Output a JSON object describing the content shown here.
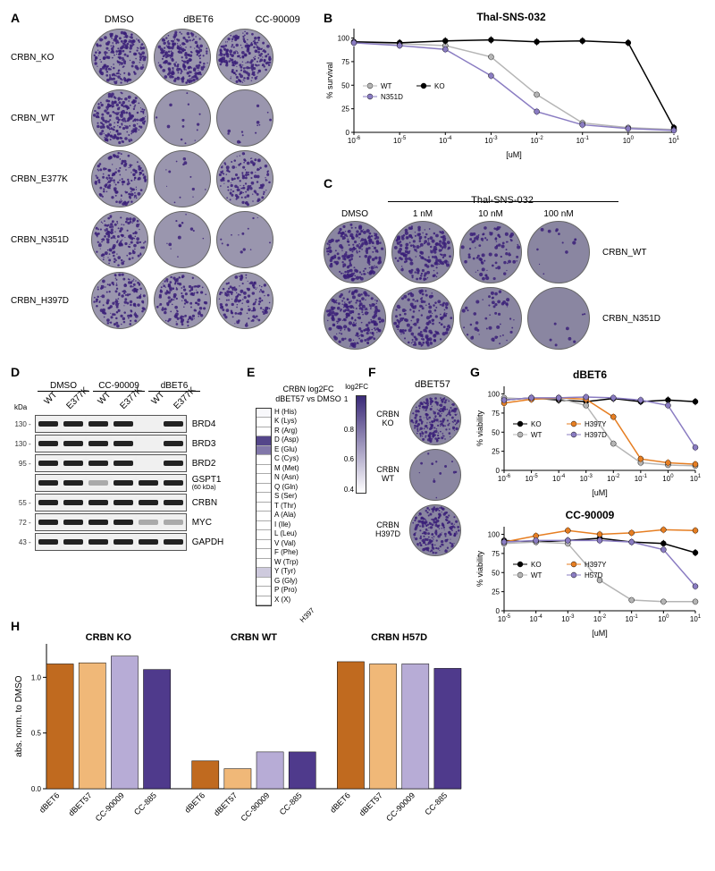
{
  "panelA": {
    "label": "A",
    "column_headers": [
      "DMSO",
      "dBET6",
      "CC-90009"
    ],
    "rows": [
      {
        "label": "CRBN_KO",
        "density": [
          0.85,
          0.85,
          0.85
        ]
      },
      {
        "label": "CRBN_WT",
        "density": [
          0.8,
          0.05,
          0.05
        ]
      },
      {
        "label": "CRBN_E377K",
        "density": [
          0.6,
          0.05,
          0.55
        ]
      },
      {
        "label": "CRBN_N351D",
        "density": [
          0.6,
          0.05,
          0.05
        ]
      },
      {
        "label": "CRBN_H397D",
        "density": [
          0.6,
          0.55,
          0.55
        ]
      }
    ],
    "dot_color": "#3a1f78",
    "plate_bg": "#9a96ae"
  },
  "panelB": {
    "label": "B",
    "title": "Thal-SNS-032",
    "ylabel": "% survival",
    "xlabel": "[uM]",
    "xticks_exp": [
      -6,
      -5,
      -4,
      -3,
      -2,
      -1,
      0,
      1
    ],
    "yticks": [
      0,
      25,
      50,
      75,
      100
    ],
    "ylim": [
      0,
      110
    ],
    "series": [
      {
        "name": "WT",
        "color": "#b5b5b5",
        "marker": "circle",
        "x_exp": [
          -6,
          -5,
          -4,
          -3,
          -2,
          -1,
          0,
          1
        ],
        "y": [
          95,
          94,
          92,
          80,
          40,
          10,
          5,
          3
        ]
      },
      {
        "name": "KO",
        "color": "#000000",
        "marker": "circle",
        "x_exp": [
          -6,
          -5,
          -4,
          -3,
          -2,
          -1,
          0,
          1
        ],
        "y": [
          96,
          95,
          97,
          98,
          96,
          97,
          95,
          5
        ]
      },
      {
        "name": "N351D",
        "color": "#8a7cc2",
        "marker": "circle",
        "x_exp": [
          -6,
          -5,
          -4,
          -3,
          -2,
          -1,
          0,
          1
        ],
        "y": [
          95,
          92,
          88,
          60,
          22,
          8,
          4,
          2
        ]
      }
    ],
    "legend": [
      {
        "name": "WT",
        "color": "#b5b5b5"
      },
      {
        "name": "KO",
        "color": "#000000"
      },
      {
        "name": "N351D",
        "color": "#8a7cc2"
      }
    ]
  },
  "panelC": {
    "label": "C",
    "group_title": "Thal-SNS-032",
    "column_headers": [
      "DMSO",
      "1 nM",
      "10 nM",
      "100 nM"
    ],
    "rows": [
      {
        "label": "CRBN_WT",
        "density": [
          0.85,
          0.75,
          0.35,
          0.05
        ]
      },
      {
        "label": "CRBN_N351D",
        "density": [
          0.85,
          0.7,
          0.2,
          0.03
        ]
      }
    ]
  },
  "panelD": {
    "label": "D",
    "groups": [
      "DMSO",
      "CC-90009",
      "dBET6"
    ],
    "lanes": [
      "WT",
      "E377K",
      "WT",
      "E377K",
      "WT",
      "E377K"
    ],
    "rows": [
      {
        "kda": "130",
        "target": "BRD4",
        "band": [
          "s",
          "s",
          "s",
          "s",
          "n",
          "s"
        ]
      },
      {
        "kda": "130",
        "target": "BRD3",
        "band": [
          "s",
          "s",
          "s",
          "s",
          "n",
          "s"
        ]
      },
      {
        "kda": "95",
        "target": "BRD2",
        "band": [
          "s",
          "s",
          "s",
          "s",
          "n",
          "s"
        ]
      },
      {
        "kda": "",
        "target": "GSPT1",
        "sub": "(60 kDa)",
        "band": [
          "s",
          "s",
          "f",
          "s",
          "s",
          "s"
        ]
      },
      {
        "kda": "55",
        "target": "CRBN",
        "band": [
          "s",
          "s",
          "s",
          "s",
          "s",
          "s"
        ]
      },
      {
        "kda": "72",
        "target": "MYC",
        "band": [
          "s",
          "s",
          "s",
          "s",
          "f",
          "f"
        ]
      },
      {
        "kda": "43",
        "target": "GAPDH",
        "band": [
          "s",
          "s",
          "s",
          "s",
          "s",
          "s"
        ]
      }
    ],
    "kda_unit": "kDa"
  },
  "panelE": {
    "label": "E",
    "title": "CRBN log2FC\ndBET57 vs DMSO",
    "x_label": "H397",
    "legend_title": "log2FC",
    "legend_ticks": [
      "1",
      "0.8",
      "0.6",
      "0.4"
    ],
    "rows": [
      {
        "aa": "H (His)",
        "v": 0.42
      },
      {
        "aa": "K (Lys)",
        "v": 0.4
      },
      {
        "aa": "R (Arg)",
        "v": 0.38
      },
      {
        "aa": "D (Asp)",
        "v": 0.92
      },
      {
        "aa": "E (Glu)",
        "v": 0.78
      },
      {
        "aa": "C (Cys)",
        "v": 0.4
      },
      {
        "aa": "M (Met)",
        "v": 0.4
      },
      {
        "aa": "N (Asn)",
        "v": 0.4
      },
      {
        "aa": "Q (Gln)",
        "v": 0.4
      },
      {
        "aa": "S (Ser)",
        "v": 0.4
      },
      {
        "aa": "T (Thr)",
        "v": 0.4
      },
      {
        "aa": "A (Ala)",
        "v": 0.4
      },
      {
        "aa": "I (Ile)",
        "v": 0.4
      },
      {
        "aa": "L (Leu)",
        "v": 0.4
      },
      {
        "aa": "V (Val)",
        "v": 0.4
      },
      {
        "aa": "F (Phe)",
        "v": 0.4
      },
      {
        "aa": "W (Trp)",
        "v": 0.4
      },
      {
        "aa": "Y (Tyr)",
        "v": 0.55
      },
      {
        "aa": "G (Gly)",
        "v": 0.4
      },
      {
        "aa": "P (Pro)",
        "v": 0.4
      },
      {
        "aa": "X (X)",
        "v": 0.4
      }
    ],
    "color_low": "#ffffff",
    "color_high": "#3a2a78"
  },
  "panelF": {
    "label": "F",
    "title": "dBET57",
    "rows": [
      {
        "label": "CRBN\nKO",
        "density": 0.85
      },
      {
        "label": "CRBN\nWT",
        "density": 0.05
      },
      {
        "label": "CRBN\nH397D",
        "density": 0.8
      }
    ]
  },
  "panelG": {
    "label": "G",
    "charts": [
      {
        "title": "dBET6",
        "ylabel": "% viability",
        "xlabel": "[uM]",
        "xticks_exp": [
          -6,
          -5,
          -4,
          -3,
          -2,
          -1,
          0,
          1
        ],
        "yticks": [
          0,
          25,
          50,
          75,
          100
        ],
        "series": [
          {
            "name": "KO",
            "color": "#000000",
            "x_exp": [
              -6,
              -5,
              -4,
              -3,
              -2,
              -1,
              0,
              1
            ],
            "y": [
              92,
              95,
              92,
              90,
              94,
              90,
              92,
              90
            ]
          },
          {
            "name": "WT",
            "color": "#b5b5b5",
            "x_exp": [
              -6,
              -5,
              -4,
              -3,
              -2,
              -1,
              0,
              1
            ],
            "y": [
              95,
              93,
              94,
              85,
              35,
              10,
              7,
              6
            ]
          },
          {
            "name": "H397Y",
            "color": "#e67e22",
            "x_exp": [
              -6,
              -5,
              -4,
              -3,
              -2,
              -1,
              0,
              1
            ],
            "y": [
              88,
              93,
              95,
              93,
              70,
              15,
              10,
              8
            ]
          },
          {
            "name": "H397D",
            "color": "#8a7cc2",
            "x_exp": [
              -6,
              -5,
              -4,
              -3,
              -2,
              -1,
              0,
              1
            ],
            "y": [
              92,
              95,
              95,
              96,
              95,
              92,
              85,
              30
            ]
          }
        ],
        "legend": [
          {
            "name": "KO",
            "color": "#000000"
          },
          {
            "name": "H397Y",
            "color": "#e67e22"
          },
          {
            "name": "WT",
            "color": "#b5b5b5"
          },
          {
            "name": "H397D",
            "color": "#8a7cc2"
          }
        ]
      },
      {
        "title": "CC-90009",
        "ylabel": "% viability",
        "xlabel": "[uM]",
        "xticks_exp": [
          -5,
          -4,
          -3,
          -2,
          -1,
          0,
          1
        ],
        "yticks": [
          0,
          25,
          50,
          75,
          100
        ],
        "series": [
          {
            "name": "KO",
            "color": "#000000",
            "x_exp": [
              -5,
              -4,
              -3,
              -2,
              -1,
              0,
              1
            ],
            "y": [
              92,
              90,
              92,
              95,
              90,
              88,
              76
            ]
          },
          {
            "name": "WT",
            "color": "#b5b5b5",
            "x_exp": [
              -5,
              -4,
              -3,
              -2,
              -1,
              0,
              1
            ],
            "y": [
              88,
              90,
              88,
              40,
              14,
              12,
              12
            ]
          },
          {
            "name": "H397Y",
            "color": "#e67e22",
            "x_exp": [
              -5,
              -4,
              -3,
              -2,
              -1,
              0,
              1
            ],
            "y": [
              90,
              98,
              105,
              100,
              102,
              106,
              105
            ]
          },
          {
            "name": "H57D",
            "color": "#8a7cc2",
            "x_exp": [
              -5,
              -4,
              -3,
              -2,
              -1,
              0,
              1
            ],
            "y": [
              90,
              92,
              92,
              92,
              90,
              80,
              32
            ]
          }
        ],
        "legend": [
          {
            "name": "KO",
            "color": "#000000"
          },
          {
            "name": "H397Y",
            "color": "#e67e22"
          },
          {
            "name": "WT",
            "color": "#b5b5b5"
          },
          {
            "name": "H57D",
            "color": "#8a7cc2"
          }
        ]
      }
    ]
  },
  "panelH": {
    "label": "H",
    "ylabel": "abs. norm. to DMSO",
    "yticks": [
      0.0,
      0.5,
      1.0
    ],
    "groups": [
      "CRBN KO",
      "CRBN WT",
      "CRBN H57D"
    ],
    "categories": [
      "dBET6",
      "dBET57",
      "CC-90009",
      "CC-885"
    ],
    "colors": [
      "#c06a1f",
      "#f0b878",
      "#b7acd6",
      "#4f3a8c"
    ],
    "values": [
      [
        1.12,
        1.13,
        1.19,
        1.07
      ],
      [
        0.25,
        0.18,
        0.33,
        0.33
      ],
      [
        1.14,
        1.12,
        1.12,
        1.08
      ]
    ]
  }
}
